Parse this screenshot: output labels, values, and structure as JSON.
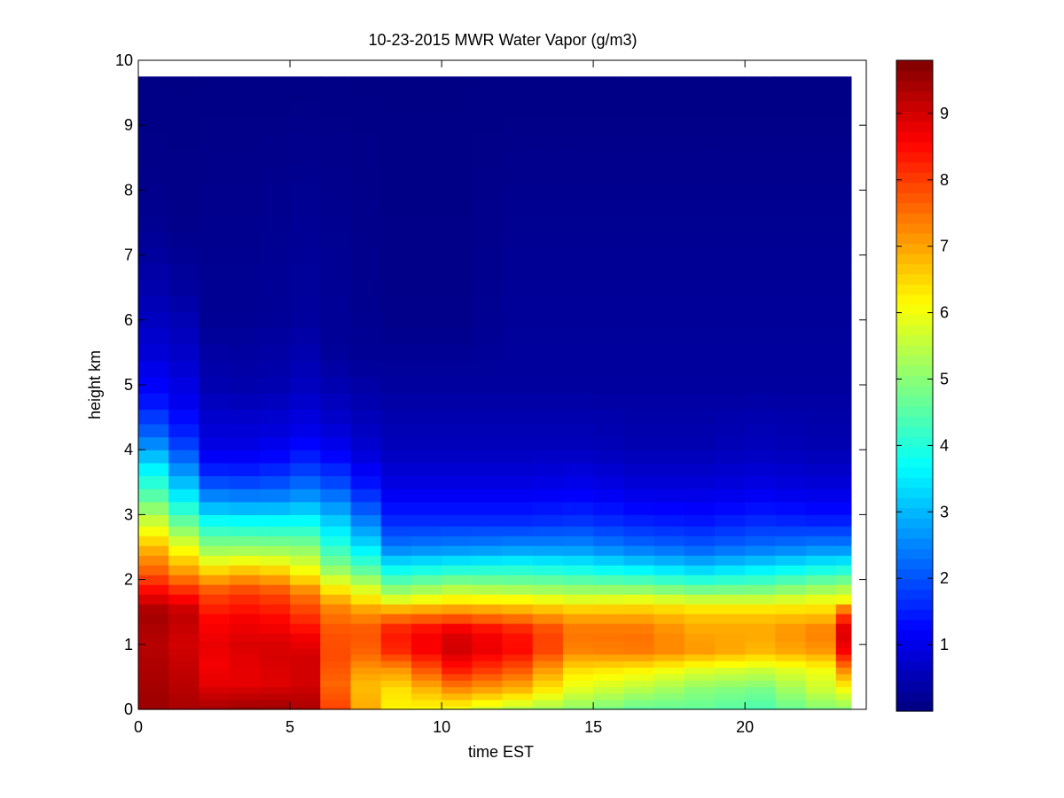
{
  "chart_data": {
    "type": "heatmap",
    "title": "10-23-2015 MWR Water Vapor (g/m3)",
    "xlabel": "time EST",
    "ylabel": "height km",
    "xlim": [
      0,
      24
    ],
    "ylim": [
      0,
      10
    ],
    "x_ticks": [
      "0",
      "5",
      "10",
      "15",
      "20"
    ],
    "y_ticks": [
      "0",
      "1",
      "2",
      "3",
      "4",
      "5",
      "6",
      "7",
      "8",
      "9",
      "10"
    ],
    "colormap": "jet",
    "color_range": [
      0,
      9.8
    ],
    "colorbar_ticks": [
      "1",
      "2",
      "3",
      "4",
      "5",
      "6",
      "7",
      "8",
      "9"
    ],
    "x_centers": [
      0.5,
      1.5,
      2.5,
      3.5,
      4.5,
      5.5,
      6.5,
      7.5,
      8.5,
      9.5,
      10.5,
      11.5,
      12.5,
      13.5,
      14.5,
      15.5,
      16.5,
      17.5,
      18.5,
      19.5,
      20.5,
      21.5,
      22.5,
      23.5
    ],
    "heights_km": [
      0,
      0.1,
      0.2,
      0.3,
      0.4,
      0.5,
      0.6,
      0.7,
      0.8,
      0.9,
      1.0,
      1.1,
      1.25,
      1.4,
      1.55,
      1.7,
      1.85,
      2.0,
      2.15,
      2.3,
      2.45,
      2.6,
      2.75,
      2.9,
      3.1,
      3.3,
      3.5,
      3.7,
      3.9,
      4.1,
      4.3,
      4.5,
      4.75,
      5.0,
      5.25,
      5.5,
      5.75,
      6.0,
      6.25,
      6.5,
      6.75,
      7.0,
      7.25,
      7.5,
      7.75,
      8.0,
      8.25,
      8.5,
      8.75,
      9.0,
      9.25,
      9.5,
      9.75
    ],
    "profiles": [
      {
        "t": 0.0,
        "points": [
          [
            0,
            9.6
          ],
          [
            0.5,
            9.5
          ],
          [
            1.0,
            9.4
          ],
          [
            1.5,
            9.6
          ],
          [
            1.8,
            8.8
          ],
          [
            2.1,
            8.0
          ],
          [
            2.5,
            7.2
          ],
          [
            2.9,
            6.1
          ],
          [
            3.3,
            5.0
          ],
          [
            3.7,
            4.1
          ],
          [
            4.2,
            2.6
          ],
          [
            4.7,
            1.6
          ],
          [
            5.5,
            0.9
          ],
          [
            6.5,
            0.5
          ],
          [
            7.5,
            0.2
          ],
          [
            8.5,
            0.1
          ],
          [
            9.75,
            0.05
          ]
        ]
      },
      {
        "t": 1.5,
        "points": [
          [
            0,
            9.4
          ],
          [
            0.5,
            9.2
          ],
          [
            1.0,
            9.0
          ],
          [
            1.5,
            9.2
          ],
          [
            1.8,
            8.3
          ],
          [
            2.1,
            7.2
          ],
          [
            2.5,
            6.0
          ],
          [
            2.9,
            4.6
          ],
          [
            3.3,
            3.5
          ],
          [
            3.7,
            2.6
          ],
          [
            4.2,
            1.6
          ],
          [
            4.7,
            1.1
          ],
          [
            5.5,
            0.7
          ],
          [
            6.5,
            0.3
          ],
          [
            7.5,
            0.1
          ],
          [
            9.75,
            0.05
          ]
        ]
      },
      {
        "t": 2.0,
        "points": [
          [
            0,
            9.4
          ],
          [
            0.4,
            8.8
          ],
          [
            0.7,
            8.6
          ],
          [
            1.0,
            8.7
          ],
          [
            1.4,
            8.5
          ],
          [
            1.8,
            7.8
          ],
          [
            2.1,
            6.6
          ],
          [
            2.4,
            5.4
          ],
          [
            2.8,
            4.1
          ],
          [
            3.2,
            2.8
          ],
          [
            3.6,
            1.7
          ],
          [
            4.0,
            1.0
          ],
          [
            5.0,
            0.5
          ],
          [
            6.0,
            0.2
          ],
          [
            9.75,
            0.05
          ]
        ]
      },
      {
        "t": 4.0,
        "points": [
          [
            0,
            9.6
          ],
          [
            0.4,
            8.8
          ],
          [
            0.7,
            8.9
          ],
          [
            1.0,
            9.0
          ],
          [
            1.4,
            8.7
          ],
          [
            1.8,
            8.1
          ],
          [
            2.1,
            7.0
          ],
          [
            2.4,
            5.5
          ],
          [
            2.8,
            4.0
          ],
          [
            3.2,
            2.6
          ],
          [
            3.6,
            1.6
          ],
          [
            4.0,
            1.0
          ],
          [
            5.0,
            0.4
          ],
          [
            6.0,
            0.2
          ],
          [
            9.75,
            0.05
          ]
        ]
      },
      {
        "t": 5.5,
        "points": [
          [
            0,
            9.4
          ],
          [
            0.4,
            9.0
          ],
          [
            0.8,
            9.0
          ],
          [
            1.1,
            8.7
          ],
          [
            1.5,
            8.0
          ],
          [
            1.8,
            7.4
          ],
          [
            2.1,
            6.2
          ],
          [
            2.5,
            5.0
          ],
          [
            2.9,
            3.7
          ],
          [
            3.3,
            2.6
          ],
          [
            3.8,
            1.6
          ],
          [
            4.3,
            1.0
          ],
          [
            5.0,
            0.6
          ],
          [
            6.0,
            0.3
          ],
          [
            9.75,
            0.05
          ]
        ]
      },
      {
        "t": 6.0,
        "points": [
          [
            0,
            8.6
          ],
          [
            0.4,
            8.3
          ],
          [
            0.8,
            8.4
          ],
          [
            1.2,
            8.1
          ],
          [
            1.6,
            7.5
          ],
          [
            1.9,
            6.3
          ],
          [
            2.2,
            5.1
          ],
          [
            2.6,
            4.1
          ],
          [
            3.0,
            3.3
          ],
          [
            3.5,
            2.2
          ],
          [
            4.0,
            1.3
          ],
          [
            4.5,
            0.8
          ],
          [
            5.5,
            0.3
          ],
          [
            9.75,
            0.05
          ]
        ]
      },
      {
        "t": 7.0,
        "points": [
          [
            0,
            7.3
          ],
          [
            0.4,
            6.9
          ],
          [
            0.8,
            7.3
          ],
          [
            1.2,
            7.5
          ],
          [
            1.6,
            7.0
          ],
          [
            1.9,
            6.0
          ],
          [
            2.2,
            4.8
          ],
          [
            2.6,
            3.7
          ],
          [
            3.0,
            2.6
          ],
          [
            3.5,
            1.6
          ],
          [
            4.0,
            0.9
          ],
          [
            4.5,
            0.6
          ],
          [
            5.5,
            0.2
          ],
          [
            9.75,
            0.05
          ]
        ]
      },
      {
        "t": 8.5,
        "points": [
          [
            0,
            6.2
          ],
          [
            0.3,
            6.4
          ],
          [
            0.6,
            7.1
          ],
          [
            0.9,
            8.2
          ],
          [
            1.2,
            8.4
          ],
          [
            1.5,
            7.2
          ],
          [
            1.7,
            5.8
          ],
          [
            1.9,
            4.8
          ],
          [
            2.2,
            3.6
          ],
          [
            2.5,
            2.4
          ],
          [
            2.9,
            1.6
          ],
          [
            3.4,
            1.0
          ],
          [
            4.0,
            0.6
          ],
          [
            5.0,
            0.3
          ],
          [
            6.0,
            0.1
          ],
          [
            9.75,
            0.05
          ]
        ]
      },
      {
        "t": 10.5,
        "points": [
          [
            0,
            6.0
          ],
          [
            0.3,
            7.2
          ],
          [
            0.6,
            8.3
          ],
          [
            0.9,
            9.0
          ],
          [
            1.2,
            8.9
          ],
          [
            1.5,
            7.3
          ],
          [
            1.7,
            6.2
          ],
          [
            1.9,
            5.2
          ],
          [
            2.2,
            3.8
          ],
          [
            2.5,
            2.5
          ],
          [
            2.9,
            1.6
          ],
          [
            3.4,
            1.0
          ],
          [
            4.0,
            0.6
          ],
          [
            5.0,
            0.3
          ],
          [
            6.0,
            0.1
          ],
          [
            9.75,
            0.05
          ]
        ]
      },
      {
        "t": 12.5,
        "points": [
          [
            0,
            5.4
          ],
          [
            0.3,
            6.8
          ],
          [
            0.6,
            7.7
          ],
          [
            0.9,
            8.5
          ],
          [
            1.2,
            8.4
          ],
          [
            1.5,
            7.1
          ],
          [
            1.7,
            6.1
          ],
          [
            1.9,
            5.0
          ],
          [
            2.2,
            3.9
          ],
          [
            2.5,
            2.6
          ],
          [
            2.9,
            1.6
          ],
          [
            3.4,
            1.0
          ],
          [
            4.0,
            0.6
          ],
          [
            5.0,
            0.3
          ],
          [
            9.75,
            0.05
          ]
        ]
      },
      {
        "t": 14.5,
        "points": [
          [
            0,
            5.0
          ],
          [
            0.3,
            5.8
          ],
          [
            0.6,
            6.4
          ],
          [
            0.9,
            7.3
          ],
          [
            1.2,
            7.5
          ],
          [
            1.5,
            6.8
          ],
          [
            1.7,
            5.8
          ],
          [
            1.9,
            4.9
          ],
          [
            2.2,
            3.7
          ],
          [
            2.5,
            2.6
          ],
          [
            2.9,
            1.7
          ],
          [
            3.4,
            1.1
          ],
          [
            4.0,
            0.6
          ],
          [
            5.0,
            0.3
          ],
          [
            9.75,
            0.05
          ]
        ]
      },
      {
        "t": 16.5,
        "points": [
          [
            0,
            4.6
          ],
          [
            0.3,
            5.4
          ],
          [
            0.6,
            6.2
          ],
          [
            0.9,
            7.4
          ],
          [
            1.2,
            7.5
          ],
          [
            1.5,
            6.8
          ],
          [
            1.7,
            5.9
          ],
          [
            1.9,
            4.8
          ],
          [
            2.2,
            3.4
          ],
          [
            2.5,
            2.3
          ],
          [
            2.9,
            1.5
          ],
          [
            3.4,
            0.9
          ],
          [
            4.0,
            0.5
          ],
          [
            5.0,
            0.3
          ],
          [
            9.75,
            0.05
          ]
        ]
      },
      {
        "t": 18.5,
        "points": [
          [
            0,
            4.6
          ],
          [
            0.3,
            5.0
          ],
          [
            0.6,
            5.8
          ],
          [
            0.9,
            7.1
          ],
          [
            1.2,
            7.0
          ],
          [
            1.5,
            6.6
          ],
          [
            1.7,
            5.6
          ],
          [
            1.9,
            4.5
          ],
          [
            2.2,
            3.1
          ],
          [
            2.5,
            2.1
          ],
          [
            2.9,
            1.4
          ],
          [
            3.4,
            0.9
          ],
          [
            4.0,
            0.5
          ],
          [
            5.0,
            0.3
          ],
          [
            9.75,
            0.05
          ]
        ]
      },
      {
        "t": 20.5,
        "points": [
          [
            0,
            4.4
          ],
          [
            0.3,
            4.8
          ],
          [
            0.6,
            5.6
          ],
          [
            0.9,
            6.8
          ],
          [
            1.2,
            7.0
          ],
          [
            1.5,
            6.6
          ],
          [
            1.7,
            5.6
          ],
          [
            1.9,
            4.6
          ],
          [
            2.2,
            3.4
          ],
          [
            2.5,
            2.3
          ],
          [
            2.9,
            1.6
          ],
          [
            3.4,
            1.0
          ],
          [
            4.0,
            0.6
          ],
          [
            5.0,
            0.3
          ],
          [
            9.75,
            0.05
          ]
        ]
      },
      {
        "t": 22.5,
        "points": [
          [
            0,
            4.9
          ],
          [
            0.3,
            5.6
          ],
          [
            0.6,
            6.0
          ],
          [
            0.9,
            7.1
          ],
          [
            1.2,
            7.4
          ],
          [
            1.5,
            6.6
          ],
          [
            1.7,
            5.9
          ],
          [
            1.9,
            5.0
          ],
          [
            2.2,
            3.7
          ],
          [
            2.5,
            2.5
          ],
          [
            2.9,
            1.5
          ],
          [
            3.4,
            0.9
          ],
          [
            4.0,
            0.5
          ],
          [
            5.0,
            0.3
          ],
          [
            9.75,
            0.05
          ]
        ]
      },
      {
        "t": 23.5,
        "points": [
          [
            0,
            5.0
          ],
          [
            0.3,
            6.0
          ],
          [
            0.6,
            7.2
          ],
          [
            0.9,
            8.6
          ],
          [
            1.2,
            9.0
          ],
          [
            1.5,
            7.8
          ],
          [
            1.7,
            6.0
          ],
          [
            1.9,
            5.2
          ],
          [
            2.2,
            3.8
          ],
          [
            2.5,
            2.5
          ],
          [
            2.9,
            1.5
          ],
          [
            3.4,
            0.9
          ],
          [
            4.0,
            0.5
          ],
          [
            5.0,
            0.3
          ],
          [
            9.75,
            0.05
          ]
        ]
      }
    ]
  }
}
